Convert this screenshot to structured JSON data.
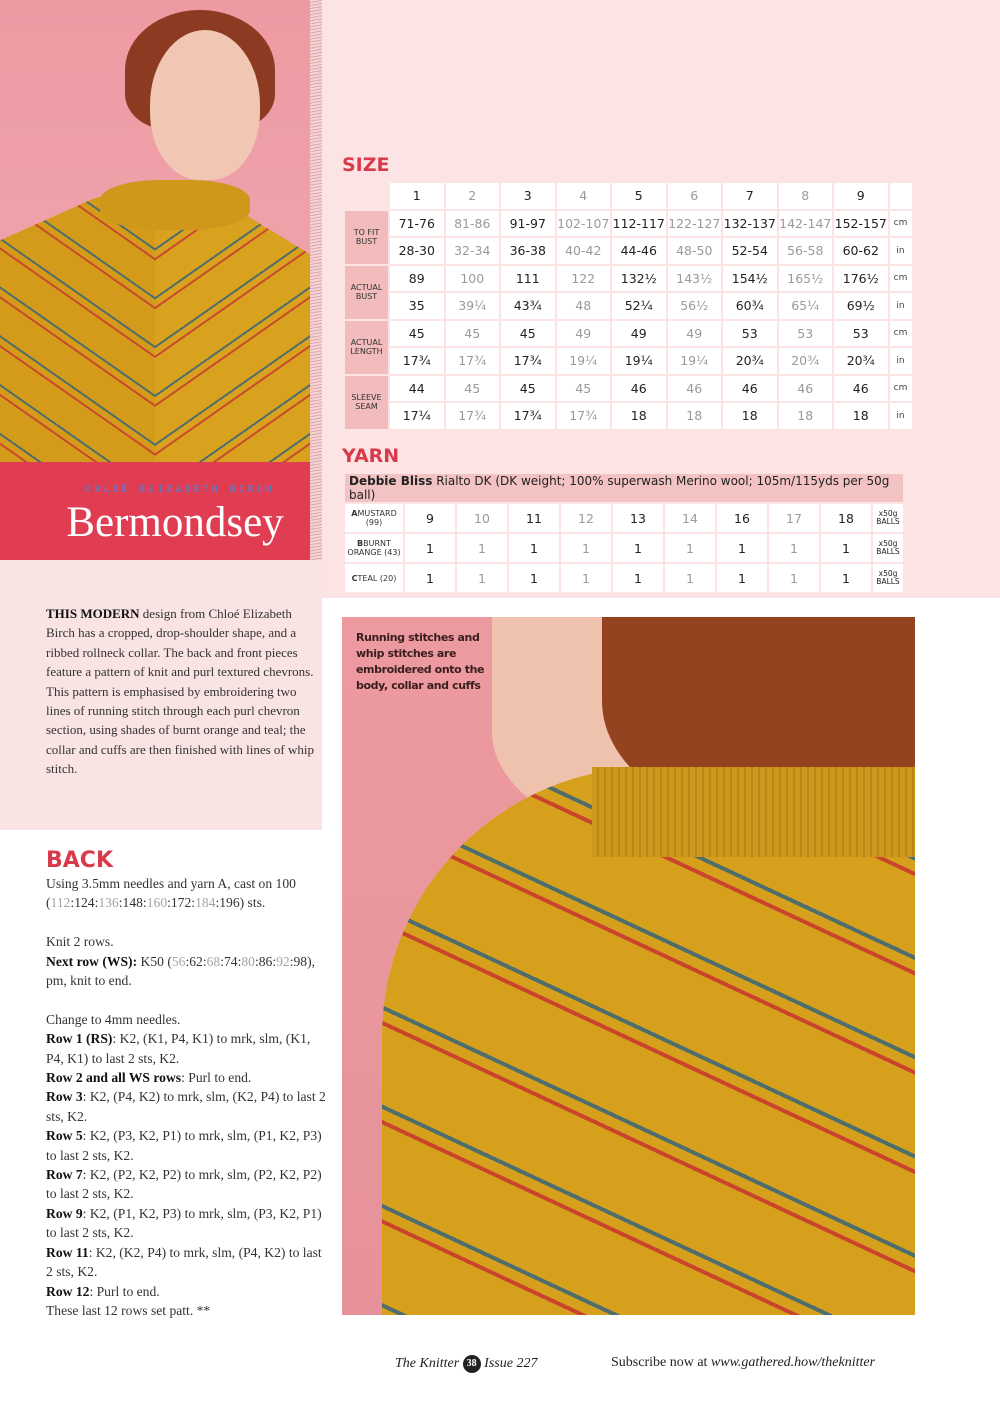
{
  "header": {
    "designer": "CHLOÉ ELIZABETH BIRCH",
    "title": "Bermondsey"
  },
  "intro": {
    "lead": "THIS MODERN",
    "text": " design from Chloé Elizabeth Birch has a cropped, drop-shoulder shape, and a ribbed rollneck collar. The back and front pieces feature a pattern of knit and purl textured chevrons. This pattern is emphasised by embroidering two lines of running stitch through each purl chevron section, using shades of burnt orange and teal; the collar and cuffs are then finished with lines of whip stitch."
  },
  "size": {
    "heading": "SIZE",
    "sizes": [
      "1",
      "2",
      "3",
      "4",
      "5",
      "6",
      "7",
      "8",
      "9"
    ],
    "rows": [
      {
        "label": "TO FIT BUST",
        "lines": [
          {
            "values": [
              "71-76",
              "81-86",
              "91-97",
              "102-107",
              "112-117",
              "122-127",
              "132-137",
              "142-147",
              "152-157"
            ],
            "unit": "cm"
          },
          {
            "values": [
              "28-30",
              "32-34",
              "36-38",
              "40-42",
              "44-46",
              "48-50",
              "52-54",
              "56-58",
              "60-62"
            ],
            "unit": "in"
          }
        ]
      },
      {
        "label": "ACTUAL BUST",
        "lines": [
          {
            "values": [
              "89",
              "100",
              "111",
              "122",
              "132½",
              "143½",
              "154½",
              "165½",
              "176½"
            ],
            "unit": "cm"
          },
          {
            "values": [
              "35",
              "39¼",
              "43¾",
              "48",
              "52¼",
              "56½",
              "60¾",
              "65¼",
              "69½"
            ],
            "unit": "in"
          }
        ]
      },
      {
        "label": "ACTUAL LENGTH",
        "lines": [
          {
            "values": [
              "45",
              "45",
              "45",
              "49",
              "49",
              "49",
              "53",
              "53",
              "53"
            ],
            "unit": "cm"
          },
          {
            "values": [
              "17¾",
              "17¾",
              "17¾",
              "19¼",
              "19¼",
              "19¼",
              "20¾",
              "20¾",
              "20¾"
            ],
            "unit": "in"
          }
        ]
      },
      {
        "label": "SLEEVE SEAM",
        "lines": [
          {
            "values": [
              "44",
              "45",
              "45",
              "45",
              "46",
              "46",
              "46",
              "46",
              "46"
            ],
            "unit": "cm"
          },
          {
            "values": [
              "17¼",
              "17¾",
              "17¾",
              "17¾",
              "18",
              "18",
              "18",
              "18",
              "18"
            ],
            "unit": "in"
          }
        ]
      }
    ]
  },
  "yarn": {
    "heading": "YARN",
    "brand": "Debbie Bliss",
    "description": " Rialto DK (DK weight; 100% superwash Merino wool; 105m/115yds per 50g ball)",
    "rows": [
      {
        "letter": "A",
        "label": "MUSTARD (99)",
        "values": [
          "9",
          "10",
          "11",
          "12",
          "13",
          "14",
          "16",
          "17",
          "18"
        ],
        "unit": "x50g BALLS"
      },
      {
        "letter": "B",
        "label": "BURNT ORANGE (43)",
        "values": [
          "1",
          "1",
          "1",
          "1",
          "1",
          "1",
          "1",
          "1",
          "1"
        ],
        "unit": "x50g BALLS"
      },
      {
        "letter": "C",
        "label": "TEAL (20)",
        "values": [
          "1",
          "1",
          "1",
          "1",
          "1",
          "1",
          "1",
          "1",
          "1"
        ],
        "unit": "x50g BALLS"
      }
    ]
  },
  "caption": "Running stitches and whip stitches are embroidered onto the body, collar and cuffs",
  "back": {
    "heading": "BACK",
    "paragraphs": [
      [
        {
          "t": "Using 3.5mm needles and yarn A, cast on 100 ("
        },
        {
          "t": "112",
          "c": "lite"
        },
        {
          "t": ":124:"
        },
        {
          "t": "136",
          "c": "lite"
        },
        {
          "t": ":148:"
        },
        {
          "t": "160",
          "c": "lite"
        },
        {
          "t": ":172:"
        },
        {
          "t": "184",
          "c": "lite"
        },
        {
          "t": ":196) sts."
        }
      ],
      [
        {
          "t": "Knit 2 rows."
        },
        {
          "br": true
        },
        {
          "t": "Next row (WS):",
          "c": "b"
        },
        {
          "t": " K50 ("
        },
        {
          "t": "56",
          "c": "lite"
        },
        {
          "t": ":62:"
        },
        {
          "t": "68",
          "c": "lite"
        },
        {
          "t": ":74:"
        },
        {
          "t": "80",
          "c": "lite"
        },
        {
          "t": ":86:"
        },
        {
          "t": "92",
          "c": "lite"
        },
        {
          "t": ":98), pm, knit to end."
        }
      ],
      [
        {
          "t": "Change to 4mm needles."
        },
        {
          "br": true
        },
        {
          "t": "Row 1 (RS)",
          "c": "b"
        },
        {
          "t": ": K2, (K1, P4, K1) to mrk, slm, (K1, P4, K1) to last 2 sts, K2."
        },
        {
          "br": true
        },
        {
          "t": "Row 2 and all WS rows",
          "c": "b"
        },
        {
          "t": ": Purl to end."
        },
        {
          "br": true
        },
        {
          "t": "Row 3",
          "c": "b"
        },
        {
          "t": ": K2, (P4, K2) to mrk, slm, (K2, P4) to last 2 sts, K2."
        },
        {
          "br": true
        },
        {
          "t": "Row 5",
          "c": "b"
        },
        {
          "t": ": K2, (P3, K2, P1) to mrk, slm, (P1, K2, P3) to last 2 sts, K2."
        },
        {
          "br": true
        },
        {
          "t": "Row 7",
          "c": "b"
        },
        {
          "t": ": K2, (P2, K2, P2) to mrk, slm, (P2, K2, P2) to last 2 sts, K2."
        },
        {
          "br": true
        },
        {
          "t": "Row 9",
          "c": "b"
        },
        {
          "t": ": K2, (P1, K2, P3) to mrk, slm, (P3, K2, P1) to last 2 sts, K2."
        },
        {
          "br": true
        },
        {
          "t": "Row 11",
          "c": "b"
        },
        {
          "t": ": K2, (K2, P4) to mrk, slm, (P4, K2) to last 2 sts, K2."
        },
        {
          "br": true
        },
        {
          "t": "Row 12",
          "c": "b"
        },
        {
          "t": ": Purl to end."
        },
        {
          "br": true
        },
        {
          "t": "These last 12 rows set patt. **"
        }
      ]
    ]
  },
  "footer": {
    "magazine": "The Knitter",
    "page": "38",
    "issue": "Issue 227",
    "subscribe": "Subscribe now at ",
    "url": "www.gathered.how/theknitter"
  },
  "colors": {
    "accent_red": "#e03c52",
    "heading_red": "#d93a4b",
    "panel_pink": "#fbe4e3",
    "label_pink": "#f2bcbc",
    "mustard": "#d6a01c"
  }
}
